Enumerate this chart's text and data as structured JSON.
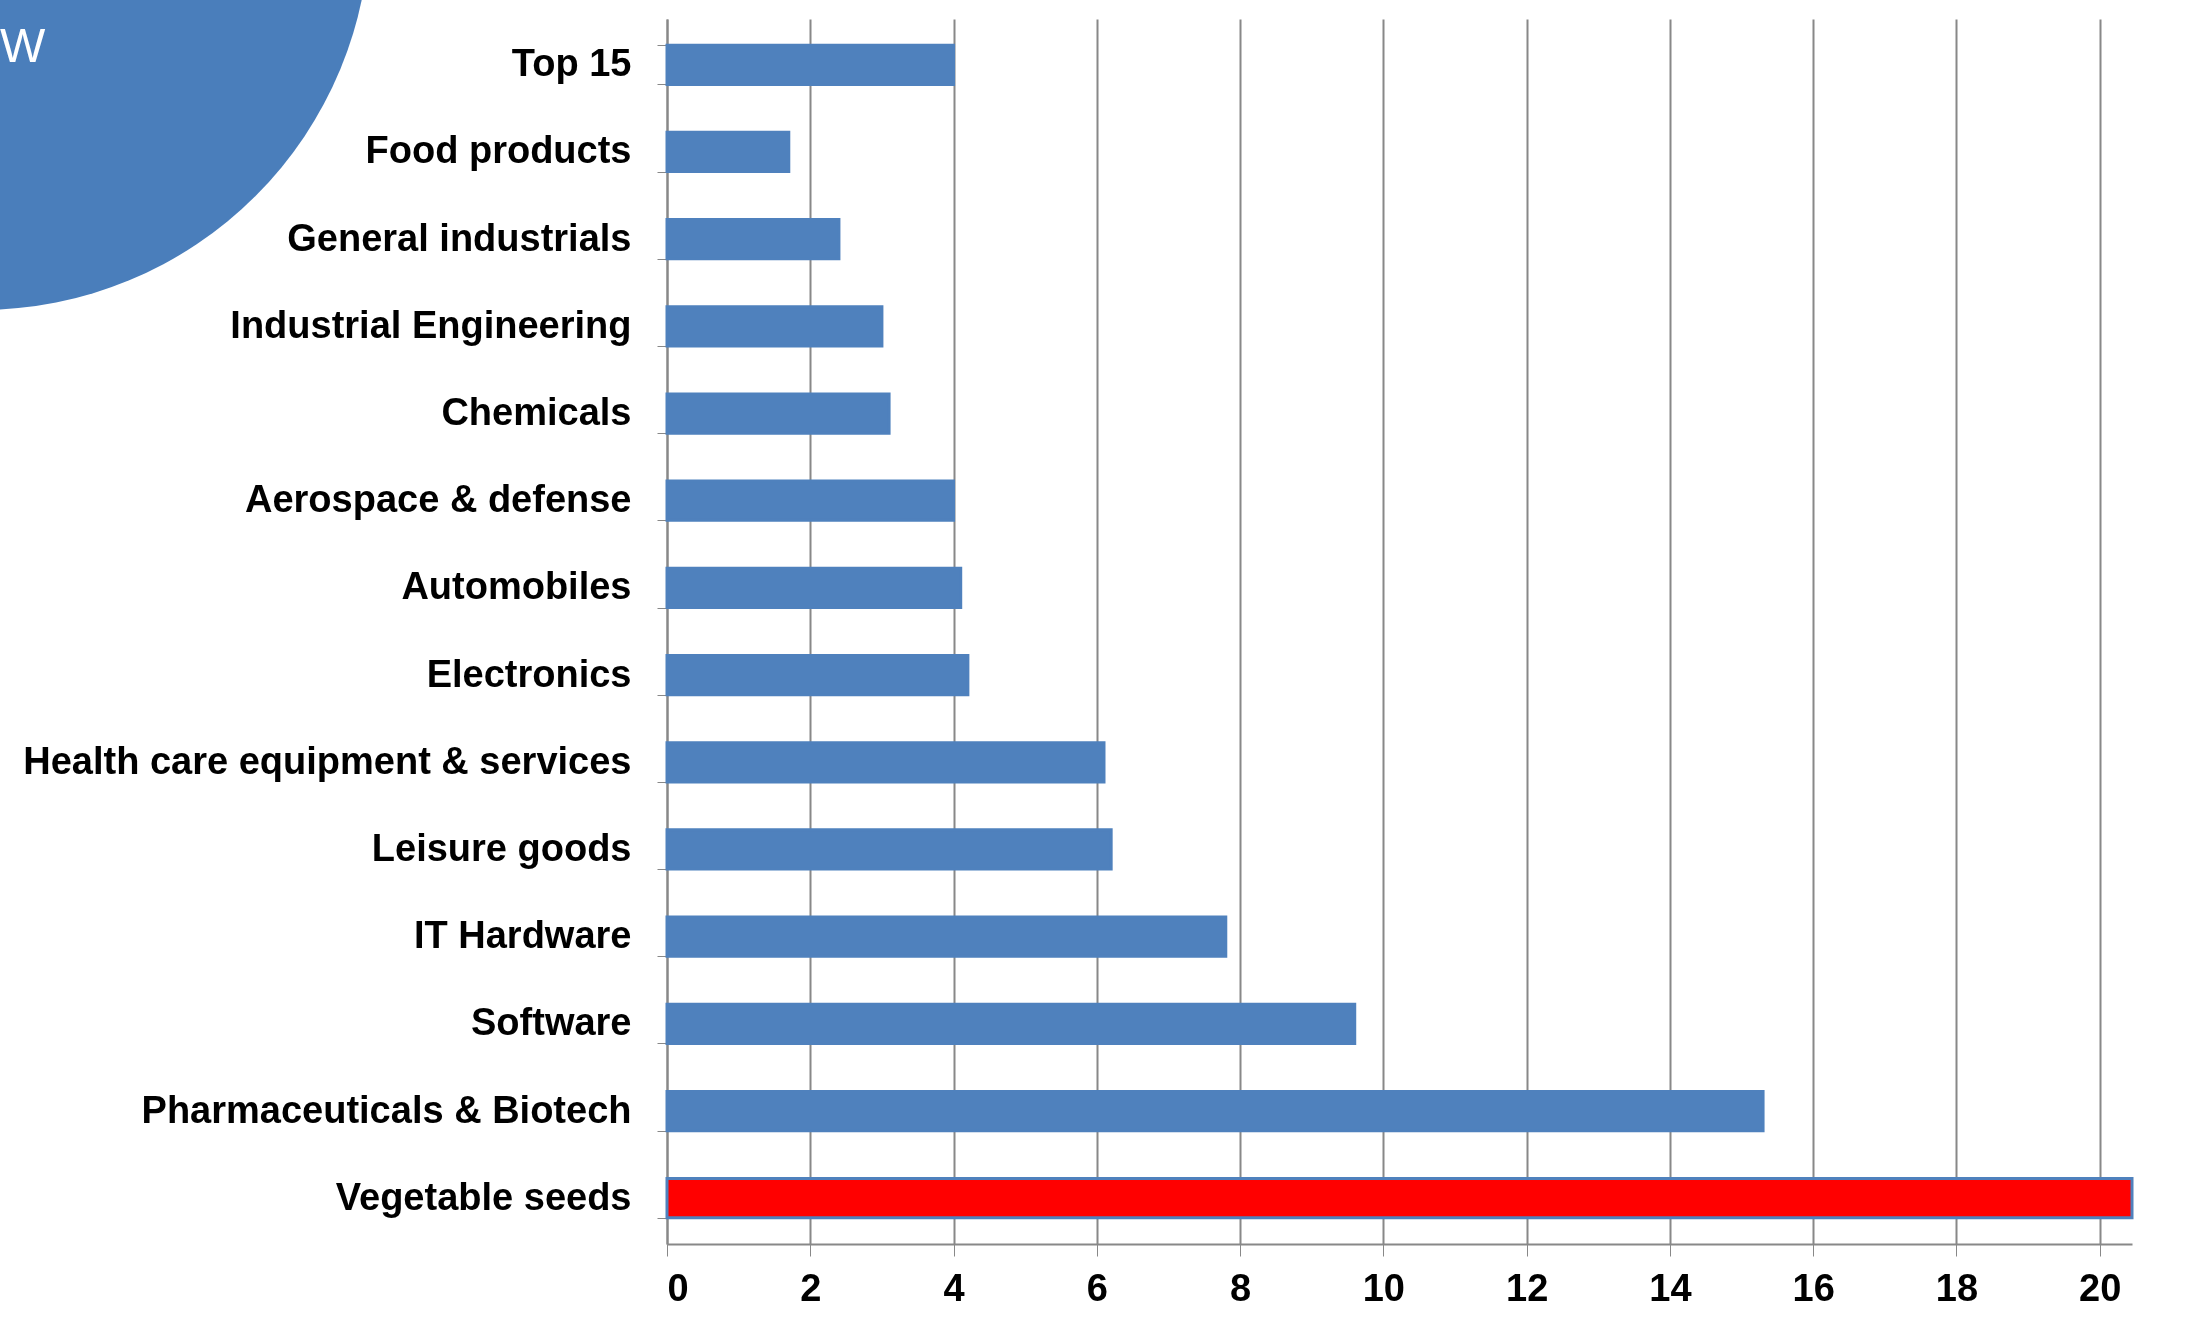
{
  "chart_data": {
    "type": "bar",
    "orientation": "horizontal",
    "categories": [
      "Top 15",
      "Food products",
      "General industrials",
      "Industrial Engineering",
      "Chemicals",
      "Aerospace & defense",
      "Automobiles",
      "Electronics",
      "Health care equipment & services",
      "Leisure goods",
      "IT Hardware",
      "Software",
      "Pharmaceuticals & Biotech",
      "Vegetable seeds"
    ],
    "values": [
      4.0,
      1.7,
      2.4,
      3.0,
      3.1,
      4.0,
      4.1,
      4.2,
      6.1,
      6.2,
      7.8,
      9.6,
      15.3,
      20.45
    ],
    "colors": [
      "#4f81bd",
      "#4f81bd",
      "#4f81bd",
      "#4f81bd",
      "#4f81bd",
      "#4f81bd",
      "#4f81bd",
      "#4f81bd",
      "#4f81bd",
      "#4f81bd",
      "#4f81bd",
      "#4f81bd",
      "#4f81bd",
      "#ff0000"
    ],
    "xlim": [
      0,
      20.45
    ],
    "xticks": [
      0,
      2,
      4,
      6,
      8,
      10,
      12,
      14,
      16,
      18,
      20
    ],
    "grid": "x",
    "annotations": [
      "W"
    ]
  }
}
